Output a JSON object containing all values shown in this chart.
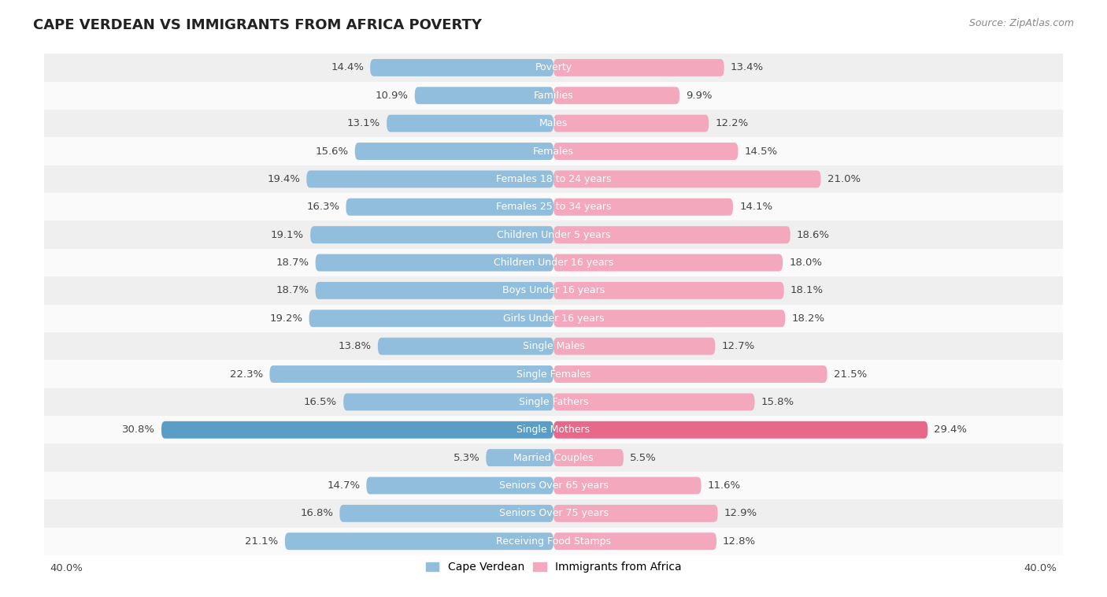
{
  "title": "CAPE VERDEAN VS IMMIGRANTS FROM AFRICA POVERTY",
  "source": "Source: ZipAtlas.com",
  "categories": [
    "Poverty",
    "Families",
    "Males",
    "Females",
    "Females 18 to 24 years",
    "Females 25 to 34 years",
    "Children Under 5 years",
    "Children Under 16 years",
    "Boys Under 16 years",
    "Girls Under 16 years",
    "Single Males",
    "Single Females",
    "Single Fathers",
    "Single Mothers",
    "Married Couples",
    "Seniors Over 65 years",
    "Seniors Over 75 years",
    "Receiving Food Stamps"
  ],
  "cape_verdean": [
    14.4,
    10.9,
    13.1,
    15.6,
    19.4,
    16.3,
    19.1,
    18.7,
    18.7,
    19.2,
    13.8,
    22.3,
    16.5,
    30.8,
    5.3,
    14.7,
    16.8,
    21.1
  ],
  "immigrants_from_africa": [
    13.4,
    9.9,
    12.2,
    14.5,
    21.0,
    14.1,
    18.6,
    18.0,
    18.1,
    18.2,
    12.7,
    21.5,
    15.8,
    29.4,
    5.5,
    11.6,
    12.9,
    12.8
  ],
  "cape_verdean_color": "#92bedd",
  "immigrants_color": "#f4a8be",
  "single_mothers_cape_verdean_color": "#5a9ec8",
  "single_mothers_immigrants_color": "#e8688a",
  "background_row_odd": "#efefef",
  "background_row_even": "#fafafa",
  "axis_limit": 40.0,
  "bar_height": 0.62,
  "label_fontsize": 9.5,
  "category_fontsize": 9.0,
  "title_fontsize": 13,
  "legend_fontsize": 10
}
